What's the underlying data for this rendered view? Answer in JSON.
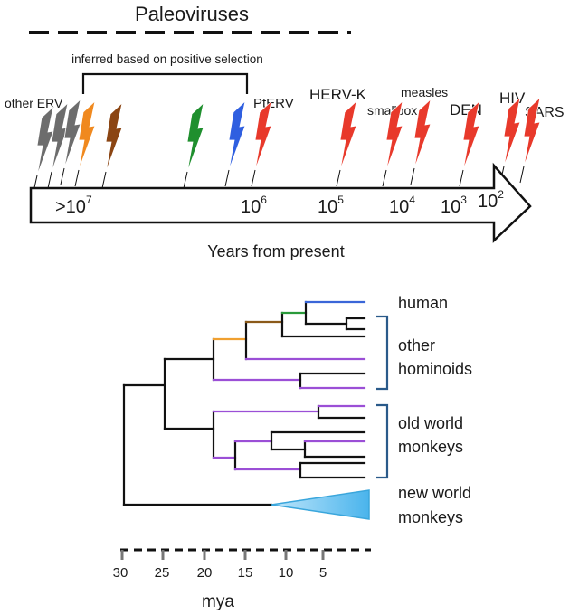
{
  "timeline": {
    "header": "Paleoviruses",
    "bracket_label": "inferred based on positive selection",
    "axis_label": "Years from present",
    "ticks": [
      {
        "base": ">10",
        "exp": "7"
      },
      {
        "base": "10",
        "exp": "6"
      },
      {
        "base": "10",
        "exp": "5"
      },
      {
        "base": "10",
        "exp": "4"
      },
      {
        "base": "10",
        "exp": "3"
      },
      {
        "base": "10",
        "exp": "2"
      }
    ],
    "viruses": [
      {
        "label": "other ERV",
        "color": "#6d6d6d"
      },
      {
        "label": "PtERV",
        "color": "#e8392b"
      },
      {
        "label": "HERV-K",
        "color": "#e8392b"
      },
      {
        "label": "smallpox",
        "color": "#e8392b"
      },
      {
        "label": "measles",
        "color": "#e8392b"
      },
      {
        "label": "DEN",
        "color": "#e8392b"
      },
      {
        "label": "HIV",
        "color": "#e8392b"
      },
      {
        "label": "SARS",
        "color": "#e8392b"
      }
    ],
    "inferred_colors": [
      "#f0891f",
      "#8b4513",
      "#1f8f2e",
      "#2f5fe0"
    ]
  },
  "tree": {
    "clades": {
      "human": "human",
      "hominoids": [
        "other",
        "hominoids"
      ],
      "owm": [
        "old world",
        "monkeys"
      ],
      "nwm": [
        "new world",
        "monkeys"
      ]
    },
    "scale": {
      "ticks": [
        "30",
        "25",
        "20",
        "15",
        "10",
        "5"
      ],
      "unit": "mya"
    },
    "colors": {
      "black": "#111111",
      "purple": "#9b4fd6",
      "orange": "#f0a030",
      "brown": "#8b5a1a",
      "green": "#2a9a3a",
      "blue": "#3a66d8",
      "bracket": "#2a5a8a",
      "triangle": "#5bc0f0"
    }
  }
}
